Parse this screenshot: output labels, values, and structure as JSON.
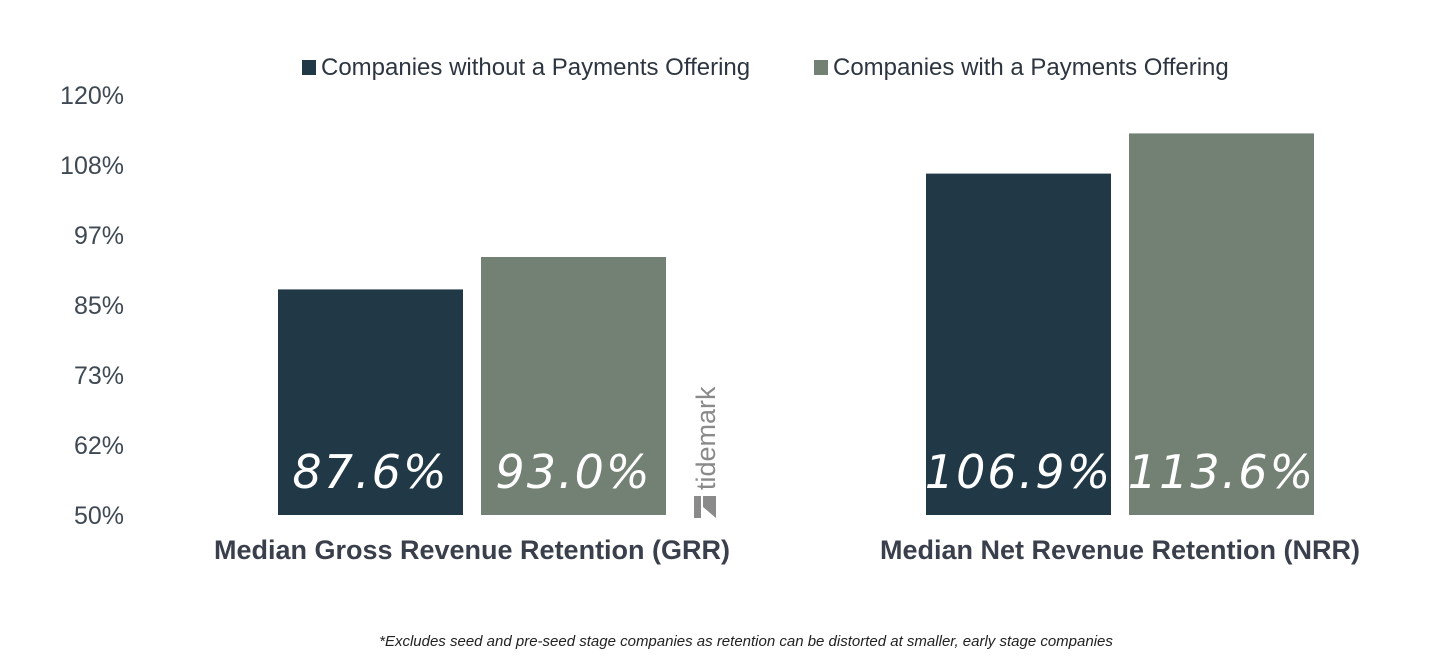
{
  "chart_data": {
    "type": "bar",
    "categories": [
      "Median Gross Revenue Retention (GRR)",
      "Median Net Revenue Retention (NRR)"
    ],
    "series": [
      {
        "name": "Companies without a Payments Offering",
        "color": "#213846",
        "values": [
          87.6,
          106.9
        ],
        "labels": [
          "87.6%",
          "106.9%"
        ]
      },
      {
        "name": "Companies with a Payments Offering",
        "color": "#738174",
        "values": [
          93.0,
          113.6
        ],
        "labels": [
          "93.0%",
          "113.6%"
        ]
      }
    ],
    "yticks": [
      "50%",
      "62%",
      "73%",
      "85%",
      "97%",
      "108%",
      "120%"
    ],
    "ylim": [
      50,
      120
    ],
    "grid": false,
    "legend": "top-center"
  },
  "watermark": {
    "text": "tidemark",
    "icon": "tidemark-logo-icon"
  },
  "footnote": "*Excludes seed and pre-seed stage companies as retention can be distorted at smaller, early stage companies"
}
